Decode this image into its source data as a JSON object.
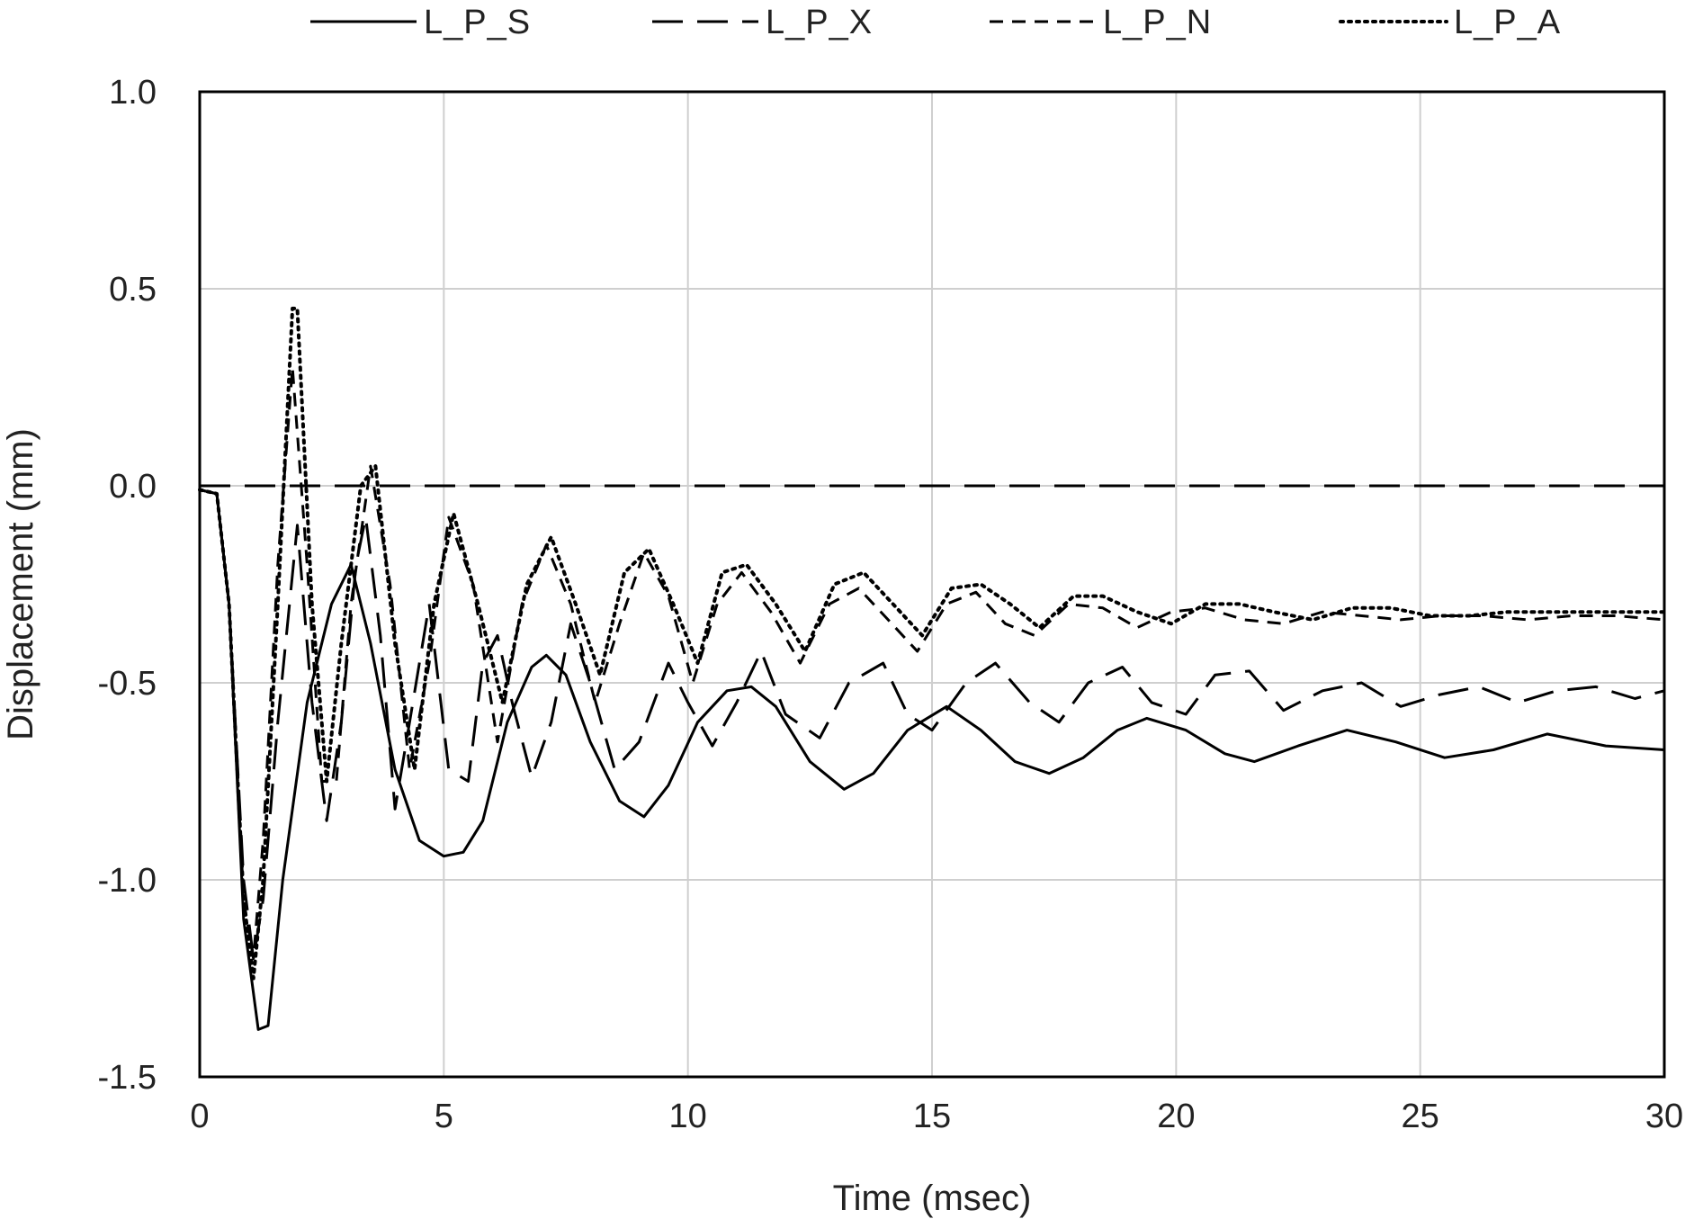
{
  "chart_data": {
    "type": "line",
    "title": "",
    "xlabel": "Time (msec)",
    "ylabel": "Displacement (mm)",
    "xlim": [
      0,
      30
    ],
    "ylim": [
      -1.5,
      1.0
    ],
    "x_ticks": [
      0,
      5,
      10,
      15,
      20,
      25,
      30
    ],
    "x_tick_labels": [
      "0",
      "5",
      "10",
      "15",
      "20",
      "25",
      "30"
    ],
    "y_ticks": [
      1.0,
      0.5,
      0.0,
      -0.5,
      -1.0,
      -1.5
    ],
    "y_tick_labels": [
      "1.0",
      "0.5",
      "0.0",
      "-0.5",
      "-1.0",
      "-1.5"
    ],
    "grid": true,
    "legend_position": "top",
    "series": [
      {
        "name": "L_P_S",
        "style": "solid",
        "color": "#000000",
        "x": [
          0,
          0.35,
          0.6,
          0.9,
          1.2,
          1.4,
          1.7,
          2.2,
          2.7,
          3.1,
          3.5,
          4.0,
          4.5,
          5.0,
          5.4,
          5.8,
          6.3,
          6.8,
          7.1,
          7.5,
          8.0,
          8.6,
          9.1,
          9.6,
          10.2,
          10.8,
          11.3,
          11.8,
          12.5,
          13.2,
          13.8,
          14.5,
          15.3,
          16.0,
          16.7,
          17.4,
          18.1,
          18.8,
          19.4,
          20.2,
          21.0,
          21.6,
          22.5,
          23.5,
          24.5,
          25.5,
          26.5,
          27.6,
          28.8,
          30
        ],
        "values": [
          -0.01,
          -0.02,
          -0.3,
          -1.1,
          -1.38,
          -1.37,
          -1.0,
          -0.55,
          -0.3,
          -0.2,
          -0.4,
          -0.72,
          -0.9,
          -0.94,
          -0.93,
          -0.85,
          -0.6,
          -0.46,
          -0.43,
          -0.48,
          -0.65,
          -0.8,
          -0.84,
          -0.76,
          -0.6,
          -0.52,
          -0.51,
          -0.56,
          -0.7,
          -0.77,
          -0.73,
          -0.62,
          -0.56,
          -0.62,
          -0.7,
          -0.73,
          -0.69,
          -0.62,
          -0.59,
          -0.62,
          -0.68,
          -0.7,
          -0.66,
          -0.62,
          -0.65,
          -0.69,
          -0.67,
          -0.63,
          -0.66,
          -0.67
        ]
      },
      {
        "name": "L_P_X",
        "style": "long-dash",
        "color": "#000000",
        "x": [
          0,
          0.35,
          0.6,
          0.9,
          1.1,
          1.3,
          1.6,
          2.0,
          2.3,
          2.6,
          2.9,
          3.2,
          3.4,
          3.7,
          4.0,
          4.3,
          4.7,
          5.1,
          5.5,
          5.8,
          6.1,
          6.4,
          6.8,
          7.2,
          7.6,
          8.0,
          8.5,
          9.0,
          9.6,
          10.0,
          10.5,
          11.0,
          11.5,
          12.0,
          12.7,
          13.3,
          14.0,
          14.5,
          15.0,
          15.7,
          16.3,
          17.0,
          17.6,
          18.2,
          18.9,
          19.5,
          20.2,
          20.8,
          21.5,
          22.2,
          23.0,
          23.8,
          24.6,
          25.4,
          26.2,
          27.0,
          27.8,
          28.6,
          29.4,
          30
        ],
        "values": [
          -0.01,
          -0.02,
          -0.3,
          -1.0,
          -1.2,
          -1.05,
          -0.6,
          -0.1,
          -0.55,
          -0.85,
          -0.6,
          -0.2,
          -0.08,
          -0.38,
          -0.82,
          -0.6,
          -0.3,
          -0.72,
          -0.75,
          -0.45,
          -0.38,
          -0.55,
          -0.74,
          -0.6,
          -0.35,
          -0.5,
          -0.72,
          -0.65,
          -0.45,
          -0.55,
          -0.66,
          -0.55,
          -0.42,
          -0.58,
          -0.64,
          -0.5,
          -0.45,
          -0.58,
          -0.62,
          -0.5,
          -0.45,
          -0.55,
          -0.6,
          -0.5,
          -0.46,
          -0.55,
          -0.58,
          -0.48,
          -0.47,
          -0.57,
          -0.52,
          -0.5,
          -0.56,
          -0.53,
          -0.51,
          -0.55,
          -0.52,
          -0.51,
          -0.54,
          -0.52
        ]
      },
      {
        "name": "L_P_N",
        "style": "short-dash",
        "color": "#000000",
        "x": [
          0,
          0.35,
          0.6,
          0.9,
          1.1,
          1.3,
          1.6,
          1.9,
          2.2,
          2.5,
          2.8,
          3.1,
          3.5,
          3.9,
          4.3,
          4.7,
          5.1,
          5.6,
          6.1,
          6.6,
          7.1,
          7.6,
          8.1,
          8.6,
          9.1,
          9.6,
          10.1,
          10.6,
          11.1,
          11.7,
          12.3,
          12.9,
          13.5,
          14.1,
          14.7,
          15.3,
          15.9,
          16.5,
          17.1,
          17.8,
          18.5,
          19.2,
          19.9,
          20.6,
          21.4,
          22.2,
          23.0,
          23.8,
          24.6,
          25.4,
          26.3,
          27.2,
          28.1,
          29.0,
          30
        ],
        "values": [
          -0.01,
          -0.02,
          -0.3,
          -1.05,
          -1.2,
          -0.9,
          -0.2,
          0.3,
          -0.2,
          -0.75,
          -0.75,
          -0.3,
          0.05,
          -0.25,
          -0.72,
          -0.45,
          -0.08,
          -0.25,
          -0.65,
          -0.3,
          -0.15,
          -0.3,
          -0.55,
          -0.35,
          -0.17,
          -0.28,
          -0.5,
          -0.3,
          -0.22,
          -0.32,
          -0.45,
          -0.3,
          -0.26,
          -0.34,
          -0.42,
          -0.3,
          -0.27,
          -0.35,
          -0.38,
          -0.3,
          -0.31,
          -0.36,
          -0.32,
          -0.31,
          -0.34,
          -0.35,
          -0.32,
          -0.33,
          -0.34,
          -0.33,
          -0.33,
          -0.34,
          -0.33,
          -0.33,
          -0.34
        ]
      },
      {
        "name": "L_P_A",
        "style": "dotted",
        "color": "#000000",
        "x": [
          0,
          0.35,
          0.6,
          0.9,
          1.1,
          1.3,
          1.6,
          1.9,
          2.0,
          2.3,
          2.6,
          2.9,
          3.3,
          3.6,
          4.0,
          4.4,
          4.8,
          5.2,
          5.7,
          6.2,
          6.7,
          7.2,
          7.7,
          8.2,
          8.7,
          9.2,
          9.7,
          10.2,
          10.7,
          11.2,
          11.8,
          12.4,
          13.0,
          13.6,
          14.2,
          14.8,
          15.4,
          16.0,
          16.6,
          17.2,
          17.9,
          18.5,
          19.2,
          19.9,
          20.6,
          21.3,
          22.0,
          22.8,
          23.6,
          24.4,
          25.2,
          26.0,
          26.8,
          27.6,
          28.4,
          29.2,
          30
        ],
        "values": [
          -0.01,
          -0.02,
          -0.3,
          -1.05,
          -1.25,
          -1.0,
          -0.3,
          0.45,
          0.45,
          -0.3,
          -0.75,
          -0.4,
          0.0,
          0.05,
          -0.4,
          -0.72,
          -0.3,
          -0.07,
          -0.3,
          -0.55,
          -0.25,
          -0.13,
          -0.3,
          -0.48,
          -0.22,
          -0.16,
          -0.3,
          -0.45,
          -0.22,
          -0.2,
          -0.3,
          -0.42,
          -0.25,
          -0.22,
          -0.3,
          -0.38,
          -0.26,
          -0.25,
          -0.3,
          -0.36,
          -0.28,
          -0.28,
          -0.32,
          -0.35,
          -0.3,
          -0.3,
          -0.32,
          -0.34,
          -0.31,
          -0.31,
          -0.33,
          -0.33,
          -0.32,
          -0.32,
          -0.32,
          -0.32,
          -0.32
        ]
      },
      {
        "name": "baseline",
        "style": "long-dash",
        "color": "#000000",
        "legend": false,
        "x": [
          0,
          30
        ],
        "values": [
          0.0,
          0.0
        ]
      }
    ]
  }
}
